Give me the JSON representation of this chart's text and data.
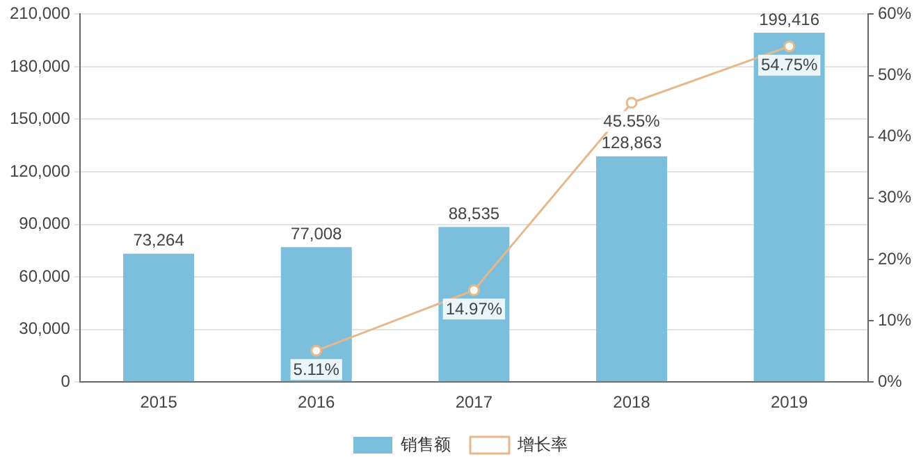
{
  "chart_data": {
    "type": "bar",
    "categories": [
      "2015",
      "2016",
      "2017",
      "2018",
      "2019"
    ],
    "series": [
      {
        "name": "销售额",
        "color": "#7bbfdc",
        "values": [
          73264,
          77008,
          88535,
          128863,
          199416
        ],
        "value_labels": [
          "73,264",
          "77,008",
          "88,535",
          "128,863",
          "199,416"
        ]
      },
      {
        "name": "增长率",
        "type": "line",
        "axis": "y2",
        "color": "#e6b88c",
        "marker": "circle",
        "values": [
          null,
          5.11,
          14.97,
          45.55,
          54.75
        ],
        "value_labels": [
          null,
          "5.11%",
          "14.97%",
          "45.55%",
          "54.75%"
        ]
      }
    ],
    "ylim": [
      0,
      210000
    ],
    "yticks": [
      {
        "value": 0,
        "label": "0"
      },
      {
        "value": 30000,
        "label": "30,000"
      },
      {
        "value": 60000,
        "label": "60,000"
      },
      {
        "value": 90000,
        "label": "90,000"
      },
      {
        "value": 120000,
        "label": "120,000"
      },
      {
        "value": 150000,
        "label": "150,000"
      },
      {
        "value": 180000,
        "label": "180,000"
      },
      {
        "value": 210000,
        "label": "210,000"
      }
    ],
    "y2lim": [
      0,
      60
    ],
    "y2ticks": [
      {
        "value": 0,
        "label": "0%"
      },
      {
        "value": 10,
        "label": "10%"
      },
      {
        "value": 20,
        "label": "20%"
      },
      {
        "value": 30,
        "label": "30%"
      },
      {
        "value": 40,
        "label": "40%"
      },
      {
        "value": 50,
        "label": "50%"
      },
      {
        "value": 60,
        "label": "60%"
      }
    ],
    "grid": "y",
    "legend": "bottom"
  }
}
